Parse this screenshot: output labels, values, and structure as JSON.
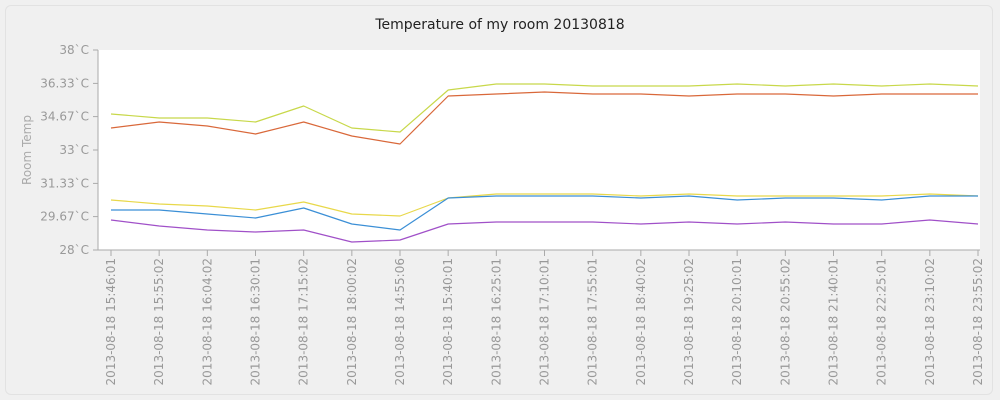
{
  "chart_data": {
    "type": "line",
    "title": "Temperature of my room  20130818",
    "ylabel": "Room Temp",
    "xlabel": "",
    "ylim": [
      28,
      38
    ],
    "yticks": [
      "28`C",
      "29.67`C",
      "31.33`C",
      "33`C",
      "34.67`C",
      "36.33`C",
      "38`C"
    ],
    "ytick_values": [
      28,
      29.67,
      31.33,
      33,
      34.67,
      36.33,
      38
    ],
    "x": [
      "2013-08-18 15:46:01",
      "2013-08-18 15:55:02",
      "2013-08-18 16:04:02",
      "2013-08-18 16:30:01",
      "2013-08-18 17:15:02",
      "2013-08-18 18:00:02",
      "2013-08-18 14:55:06",
      "2013-08-18 15:40:01",
      "2013-08-18 16:25:01",
      "2013-08-18 17:10:01",
      "2013-08-18 17:55:01",
      "2013-08-18 18:40:02",
      "2013-08-18 19:25:02",
      "2013-08-18 20:10:01",
      "2013-08-18 20:55:02",
      "2013-08-18 21:40:01",
      "2013-08-18 22:25:01",
      "2013-08-18 23:10:02",
      "2013-08-18 23:55:02"
    ],
    "grid": false,
    "legend": "none",
    "series": [
      {
        "color": "#c8d84a",
        "values": [
          34.8,
          34.6,
          34.6,
          34.4,
          35.2,
          34.1,
          33.9,
          36.0,
          36.3,
          36.3,
          36.2,
          36.2,
          36.2,
          36.3,
          36.2,
          36.3,
          36.2,
          36.3,
          36.2
        ]
      },
      {
        "color": "#d9683a",
        "values": [
          34.1,
          34.4,
          34.2,
          33.8,
          34.4,
          33.7,
          33.3,
          35.7,
          35.8,
          35.9,
          35.8,
          35.8,
          35.7,
          35.8,
          35.8,
          35.7,
          35.8,
          35.8,
          35.8
        ]
      },
      {
        "color": "#e8d84a",
        "values": [
          30.5,
          30.3,
          30.2,
          30.0,
          30.4,
          29.8,
          29.7,
          30.6,
          30.8,
          30.8,
          30.8,
          30.7,
          30.8,
          30.7,
          30.7,
          30.7,
          30.7,
          30.8,
          30.7
        ]
      },
      {
        "color": "#3b8fd6",
        "values": [
          30.0,
          30.0,
          29.8,
          29.6,
          30.1,
          29.3,
          29.0,
          30.6,
          30.7,
          30.7,
          30.7,
          30.6,
          30.7,
          30.5,
          30.6,
          30.6,
          30.5,
          30.7,
          30.7
        ]
      },
      {
        "color": "#a050c8",
        "values": [
          29.5,
          29.2,
          29.0,
          28.9,
          29.0,
          28.4,
          28.5,
          29.3,
          29.4,
          29.4,
          29.4,
          29.3,
          29.4,
          29.3,
          29.4,
          29.3,
          29.3,
          29.5,
          29.3
        ]
      }
    ]
  }
}
